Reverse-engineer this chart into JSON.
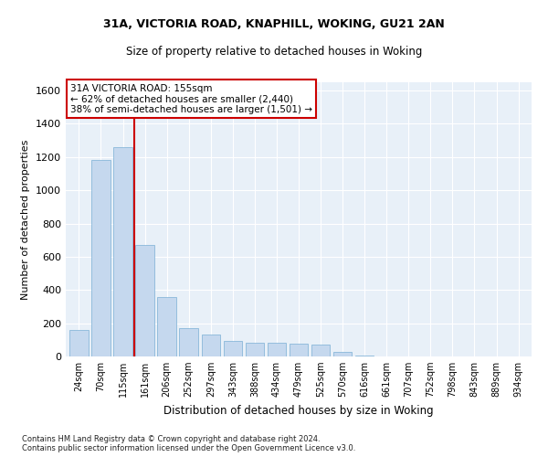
{
  "title1": "31A, VICTORIA ROAD, KNAPHILL, WOKING, GU21 2AN",
  "title2": "Size of property relative to detached houses in Woking",
  "xlabel": "Distribution of detached houses by size in Woking",
  "ylabel": "Number of detached properties",
  "categories": [
    "24sqm",
    "70sqm",
    "115sqm",
    "161sqm",
    "206sqm",
    "252sqm",
    "297sqm",
    "343sqm",
    "388sqm",
    "434sqm",
    "479sqm",
    "525sqm",
    "570sqm",
    "616sqm",
    "661sqm",
    "707sqm",
    "752sqm",
    "798sqm",
    "843sqm",
    "889sqm",
    "934sqm"
  ],
  "values": [
    160,
    1180,
    1260,
    670,
    360,
    170,
    130,
    95,
    85,
    80,
    75,
    70,
    30,
    5,
    0,
    0,
    0,
    0,
    0,
    0,
    0
  ],
  "bar_color": "#c5d8ee",
  "bar_edge_color": "#7aafd4",
  "background_color": "#e8f0f8",
  "grid_color": "#ffffff",
  "red_line_x": 2.5,
  "annotation_line1": "31A VICTORIA ROAD: 155sqm",
  "annotation_line2": "← 62% of detached houses are smaller (2,440)",
  "annotation_line3": "38% of semi-detached houses are larger (1,501) →",
  "annotation_box_color": "#ffffff",
  "annotation_box_edge": "#cc0000",
  "footer1": "Contains HM Land Registry data © Crown copyright and database right 2024.",
  "footer2": "Contains public sector information licensed under the Open Government Licence v3.0.",
  "ylim": [
    0,
    1650
  ],
  "yticks": [
    0,
    200,
    400,
    600,
    800,
    1000,
    1200,
    1400,
    1600
  ]
}
